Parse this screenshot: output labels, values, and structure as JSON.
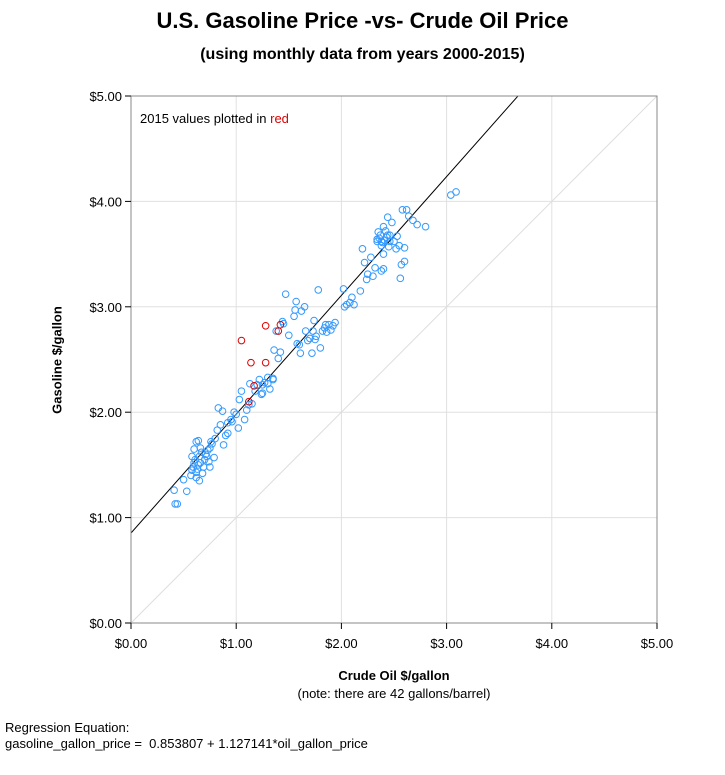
{
  "chart_data": {
    "type": "scatter",
    "title": "U.S. Gasoline Price -vs- Crude Oil Price",
    "subtitle": "(using monthly data from years 2000-2015)",
    "xlabel": "Crude Oil $/gallon",
    "xlabel_note": "(note: there are 42 gallons/barrel)",
    "ylabel": "Gasoline $/gallon",
    "xlim": [
      0,
      5
    ],
    "ylim": [
      0,
      5
    ],
    "x_ticks": [
      "$0.00",
      "$1.00",
      "$2.00",
      "$3.00",
      "$4.00",
      "$5.00"
    ],
    "y_ticks": [
      "$0.00",
      "$1.00",
      "$2.00",
      "$3.00",
      "$4.00",
      "$5.00"
    ],
    "grid": true,
    "annotation": {
      "prefix": "2015 values plotted in ",
      "highlight": "red"
    },
    "colors": {
      "main": "#3399ff",
      "highlight": "#dd0000",
      "regression": "#000000",
      "reference": "#dddddd",
      "grid": "#e0e0e0"
    },
    "regression": {
      "intercept": 0.853807,
      "slope": 1.127141
    },
    "reference_line": {
      "slope": 1,
      "intercept": 0
    },
    "series": [
      {
        "highlight": false,
        "points": [
          [
            0.42,
            1.13
          ],
          [
            0.44,
            1.13
          ],
          [
            0.41,
            1.26
          ],
          [
            0.5,
            1.36
          ],
          [
            0.53,
            1.25
          ],
          [
            0.57,
            1.4
          ],
          [
            0.58,
            1.45
          ],
          [
            0.59,
            1.48
          ],
          [
            0.6,
            1.52
          ],
          [
            0.61,
            1.55
          ],
          [
            0.62,
            1.43
          ],
          [
            0.63,
            1.46
          ],
          [
            0.64,
            1.5
          ],
          [
            0.65,
            1.58
          ],
          [
            0.66,
            1.52
          ],
          [
            0.67,
            1.62
          ],
          [
            0.68,
            1.42
          ],
          [
            0.69,
            1.48
          ],
          [
            0.7,
            1.55
          ],
          [
            0.71,
            1.6
          ],
          [
            0.72,
            1.58
          ],
          [
            0.73,
            1.64
          ],
          [
            0.74,
            1.53
          ],
          [
            0.75,
            1.66
          ],
          [
            0.76,
            1.72
          ],
          [
            0.77,
            1.7
          ],
          [
            0.62,
            1.72
          ],
          [
            0.64,
            1.73
          ],
          [
            0.66,
            1.66
          ],
          [
            0.6,
            1.65
          ],
          [
            0.58,
            1.58
          ],
          [
            0.62,
            1.38
          ],
          [
            0.65,
            1.35
          ],
          [
            0.75,
            1.48
          ],
          [
            0.8,
            1.75
          ],
          [
            0.82,
            1.83
          ],
          [
            0.85,
            1.88
          ],
          [
            0.87,
            2.01
          ],
          [
            0.83,
            2.04
          ],
          [
            0.9,
            1.78
          ],
          [
            0.92,
            1.8
          ],
          [
            0.92,
            1.9
          ],
          [
            0.95,
            1.93
          ],
          [
            0.98,
            2.0
          ],
          [
            1.0,
            1.98
          ],
          [
            1.02,
            1.85
          ],
          [
            1.03,
            2.12
          ],
          [
            1.05,
            2.2
          ],
          [
            1.08,
            1.93
          ],
          [
            1.1,
            2.02
          ],
          [
            1.12,
            2.07
          ],
          [
            1.13,
            2.27
          ],
          [
            1.15,
            2.08
          ],
          [
            1.18,
            2.2
          ],
          [
            1.2,
            2.26
          ],
          [
            1.22,
            2.31
          ],
          [
            1.24,
            2.17
          ],
          [
            1.25,
            2.26
          ],
          [
            1.27,
            2.28
          ],
          [
            1.3,
            2.33
          ],
          [
            1.32,
            2.22
          ],
          [
            1.35,
            2.31
          ],
          [
            1.36,
            2.59
          ],
          [
            1.38,
            2.77
          ],
          [
            1.4,
            2.51
          ],
          [
            1.42,
            2.57
          ],
          [
            1.44,
            2.86
          ],
          [
            1.45,
            2.84
          ],
          [
            1.47,
            3.12
          ],
          [
            1.5,
            2.73
          ],
          [
            1.55,
            2.91
          ],
          [
            1.56,
            2.97
          ],
          [
            1.57,
            3.05
          ],
          [
            1.58,
            2.65
          ],
          [
            1.6,
            2.64
          ],
          [
            1.61,
            2.56
          ],
          [
            1.62,
            2.96
          ],
          [
            1.65,
            3.0
          ],
          [
            1.66,
            2.77
          ],
          [
            1.68,
            2.68
          ],
          [
            1.7,
            2.7
          ],
          [
            1.72,
            2.56
          ],
          [
            1.73,
            2.77
          ],
          [
            1.74,
            2.87
          ],
          [
            1.75,
            2.69
          ],
          [
            1.76,
            2.72
          ],
          [
            1.78,
            3.16
          ],
          [
            1.8,
            2.61
          ],
          [
            1.82,
            2.77
          ],
          [
            1.84,
            2.8
          ],
          [
            1.85,
            2.83
          ],
          [
            1.86,
            2.76
          ],
          [
            1.88,
            2.83
          ],
          [
            1.9,
            2.78
          ],
          [
            1.92,
            2.82
          ],
          [
            1.94,
            2.85
          ],
          [
            2.02,
            3.17
          ],
          [
            2.03,
            3.0
          ],
          [
            2.05,
            3.02
          ],
          [
            2.08,
            3.04
          ],
          [
            2.1,
            3.09
          ],
          [
            2.12,
            3.02
          ],
          [
            2.18,
            3.15
          ],
          [
            2.2,
            3.55
          ],
          [
            2.22,
            3.42
          ],
          [
            2.24,
            3.26
          ],
          [
            2.25,
            3.31
          ],
          [
            2.28,
            3.47
          ],
          [
            2.3,
            3.29
          ],
          [
            2.32,
            3.37
          ],
          [
            2.34,
            3.62
          ],
          [
            2.35,
            3.71
          ],
          [
            2.36,
            3.65
          ],
          [
            2.37,
            3.68
          ],
          [
            2.38,
            3.62
          ],
          [
            2.39,
            3.61
          ],
          [
            2.4,
            3.36
          ],
          [
            2.41,
            3.63
          ],
          [
            2.42,
            3.72
          ],
          [
            2.43,
            3.66
          ],
          [
            2.44,
            3.85
          ],
          [
            2.45,
            3.57
          ],
          [
            2.46,
            3.68
          ],
          [
            2.48,
            3.8
          ],
          [
            2.5,
            3.62
          ],
          [
            2.52,
            3.55
          ],
          [
            2.53,
            3.67
          ],
          [
            2.55,
            3.58
          ],
          [
            2.56,
            3.27
          ],
          [
            2.57,
            3.4
          ],
          [
            2.58,
            3.92
          ],
          [
            2.6,
            3.43
          ],
          [
            2.62,
            3.92
          ],
          [
            2.64,
            3.86
          ],
          [
            2.68,
            3.82
          ],
          [
            2.72,
            3.78
          ],
          [
            2.8,
            3.76
          ],
          [
            3.04,
            4.06
          ],
          [
            3.09,
            4.09
          ],
          [
            2.38,
            3.58
          ],
          [
            2.4,
            3.5
          ],
          [
            2.44,
            3.68
          ],
          [
            2.46,
            3.62
          ],
          [
            2.4,
            3.76
          ],
          [
            2.34,
            3.64
          ],
          [
            2.38,
            3.34
          ],
          [
            2.6,
            3.56
          ],
          [
            1.35,
            2.32
          ],
          [
            1.3,
            2.27
          ],
          [
            1.25,
            2.18
          ],
          [
            0.96,
            1.91
          ],
          [
            0.88,
            1.69
          ],
          [
            0.79,
            1.57
          ]
        ]
      },
      {
        "highlight": true,
        "points": [
          [
            1.05,
            2.68
          ],
          [
            1.28,
            2.82
          ],
          [
            1.14,
            2.47
          ],
          [
            1.28,
            2.47
          ],
          [
            1.4,
            2.77
          ],
          [
            1.42,
            2.83
          ],
          [
            1.17,
            2.25
          ],
          [
            1.12,
            2.1
          ]
        ]
      }
    ]
  },
  "regression_text": {
    "title": "Regression Equation:",
    "equation": "gasoline_gallon_price =  0.853807 + 1.127141*oil_gallon_price"
  }
}
